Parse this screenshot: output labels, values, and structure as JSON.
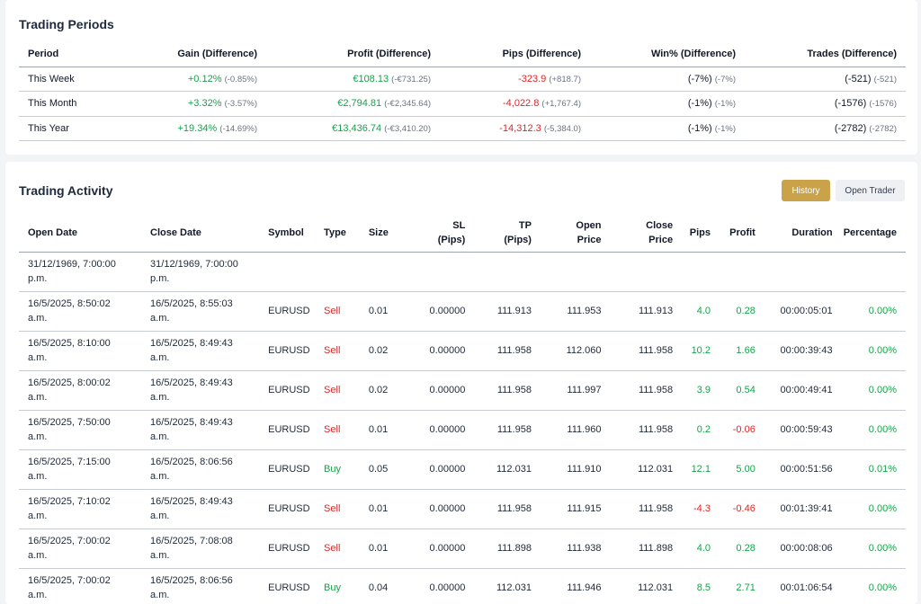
{
  "periods": {
    "title": "Trading Periods",
    "headers": [
      "Period",
      "Gain (Difference)",
      "Profit (Difference)",
      "Pips (Difference)",
      "Win% (Difference)",
      "Trades (Difference)"
    ],
    "rows": [
      {
        "period": "This Week",
        "gain": "+0.12%",
        "gain_diff": "(-0.85%)",
        "profit": "€108.13",
        "profit_diff": "(-€731.25)",
        "pips": "-323.9",
        "pips_diff": "(+818.7)",
        "win": "(-7%)",
        "win_diff": "(-7%)",
        "trades": "(-521)",
        "trades_diff": "(-521)"
      },
      {
        "period": "This Month",
        "gain": "+3.32%",
        "gain_diff": "(-3.57%)",
        "profit": "€2,794.81",
        "profit_diff": "(-€2,345.64)",
        "pips": "-4,022.8",
        "pips_diff": "(+1,767.4)",
        "win": "(-1%)",
        "win_diff": "(-1%)",
        "trades": "(-1576)",
        "trades_diff": "(-1576)"
      },
      {
        "period": "This Year",
        "gain": "+19.34%",
        "gain_diff": "(-14.69%)",
        "profit": "€13,436.74",
        "profit_diff": "(-€3,410.20)",
        "pips": "-14,312.3",
        "pips_diff": "(-5,384.0)",
        "win": "(-1%)",
        "win_diff": "(-1%)",
        "trades": "(-2782)",
        "trades_diff": "(-2782)"
      }
    ]
  },
  "activity": {
    "title": "Trading Activity",
    "buttons": {
      "history": "History",
      "open_trader": "Open Trader"
    },
    "headers": {
      "open_date": "Open Date",
      "close_date": "Close Date",
      "symbol": "Symbol",
      "type": "Type",
      "size": "Size",
      "sl_1": "SL",
      "sl_2": "(Pips)",
      "tp_1": "TP",
      "tp_2": "(Pips)",
      "open_price_1": "Open",
      "open_price_2": "Price",
      "close_price_1": "Close",
      "close_price_2": "Price",
      "pips": "Pips",
      "profit": "Profit",
      "duration": "Duration",
      "percentage": "Percentage"
    },
    "empty_row": {
      "open_date_1": "31/12/1969, 7:00:00",
      "open_date_2": "p.m.",
      "close_date_1": "31/12/1969, 7:00:00",
      "close_date_2": "p.m."
    },
    "rows": [
      {
        "open_1": "16/5/2025, 8:50:02",
        "open_2": "a.m.",
        "close_1": "16/5/2025, 8:55:03",
        "close_2": "a.m.",
        "symbol": "EURUSD",
        "type": "Sell",
        "size": "0.01",
        "sl": "0.00000",
        "tp": "111.913",
        "open_price": "111.953",
        "close_price": "111.913",
        "pips": "4.0",
        "profit": "0.28",
        "duration": "00:00:05:01",
        "percentage": "0.00%"
      },
      {
        "open_1": "16/5/2025, 8:10:00",
        "open_2": "a.m.",
        "close_1": "16/5/2025, 8:49:43",
        "close_2": "a.m.",
        "symbol": "EURUSD",
        "type": "Sell",
        "size": "0.02",
        "sl": "0.00000",
        "tp": "111.958",
        "open_price": "112.060",
        "close_price": "111.958",
        "pips": "10.2",
        "profit": "1.66",
        "duration": "00:00:39:43",
        "percentage": "0.00%"
      },
      {
        "open_1": "16/5/2025, 8:00:02",
        "open_2": "a.m.",
        "close_1": "16/5/2025, 8:49:43",
        "close_2": "a.m.",
        "symbol": "EURUSD",
        "type": "Sell",
        "size": "0.02",
        "sl": "0.00000",
        "tp": "111.958",
        "open_price": "111.997",
        "close_price": "111.958",
        "pips": "3.9",
        "profit": "0.54",
        "duration": "00:00:49:41",
        "percentage": "0.00%"
      },
      {
        "open_1": "16/5/2025, 7:50:00",
        "open_2": "a.m.",
        "close_1": "16/5/2025, 8:49:43",
        "close_2": "a.m.",
        "symbol": "EURUSD",
        "type": "Sell",
        "size": "0.01",
        "sl": "0.00000",
        "tp": "111.958",
        "open_price": "111.960",
        "close_price": "111.958",
        "pips": "0.2",
        "profit": "-0.06",
        "duration": "00:00:59:43",
        "percentage": "0.00%"
      },
      {
        "open_1": "16/5/2025, 7:15:00",
        "open_2": "a.m.",
        "close_1": "16/5/2025, 8:06:56",
        "close_2": "a.m.",
        "symbol": "EURUSD",
        "type": "Buy",
        "size": "0.05",
        "sl": "0.00000",
        "tp": "112.031",
        "open_price": "111.910",
        "close_price": "112.031",
        "pips": "12.1",
        "profit": "5.00",
        "duration": "00:00:51:56",
        "percentage": "0.01%"
      },
      {
        "open_1": "16/5/2025, 7:10:02",
        "open_2": "a.m.",
        "close_1": "16/5/2025, 8:49:43",
        "close_2": "a.m.",
        "symbol": "EURUSD",
        "type": "Sell",
        "size": "0.01",
        "sl": "0.00000",
        "tp": "111.958",
        "open_price": "111.915",
        "close_price": "111.958",
        "pips": "-4.3",
        "profit": "-0.46",
        "duration": "00:01:39:41",
        "percentage": "0.00%"
      },
      {
        "open_1": "16/5/2025, 7:00:02",
        "open_2": "a.m.",
        "close_1": "16/5/2025, 7:08:08",
        "close_2": "a.m.",
        "symbol": "EURUSD",
        "type": "Sell",
        "size": "0.01",
        "sl": "0.00000",
        "tp": "111.898",
        "open_price": "111.938",
        "close_price": "111.898",
        "pips": "4.0",
        "profit": "0.28",
        "duration": "00:00:08:06",
        "percentage": "0.00%"
      },
      {
        "open_1": "16/5/2025, 7:00:02",
        "open_2": "a.m.",
        "close_1": "16/5/2025, 8:06:56",
        "close_2": "a.m.",
        "symbol": "EURUSD",
        "type": "Buy",
        "size": "0.04",
        "sl": "0.00000",
        "tp": "112.031",
        "open_price": "111.946",
        "close_price": "112.031",
        "pips": "8.5",
        "profit": "2.71",
        "duration": "00:01:06:54",
        "percentage": "0.00%"
      }
    ]
  },
  "colors": {
    "positive": "#16a34a",
    "negative": "#dc2626",
    "accent": "#c9a24a",
    "muted": "#6b7280"
  }
}
